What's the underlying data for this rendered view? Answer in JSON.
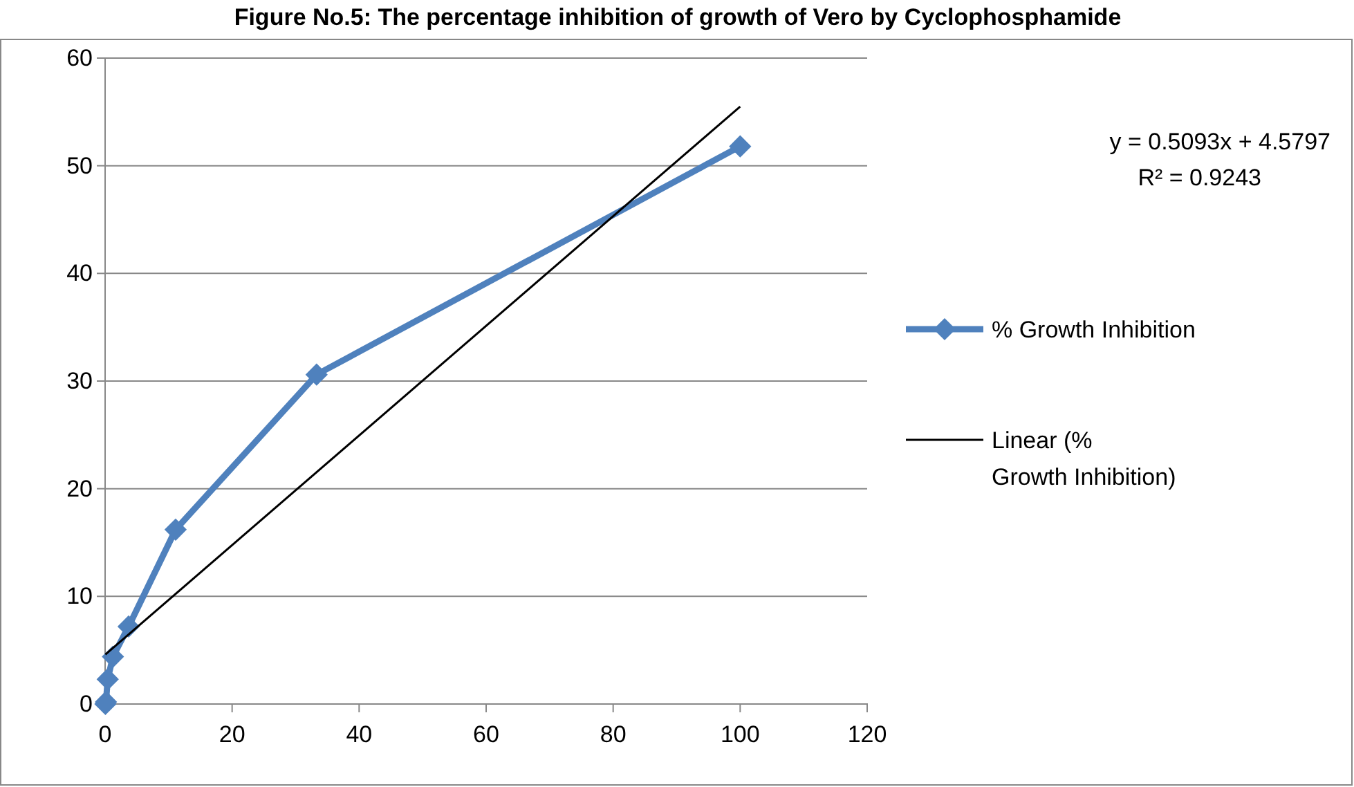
{
  "chart_data": {
    "type": "line",
    "title": "Figure No.5: The percentage inhibition of growth of Vero by Cyclophosphamide",
    "xlim": [
      0,
      120
    ],
    "xticks": [
      0,
      20,
      40,
      60,
      80,
      100,
      120
    ],
    "ylim": [
      0,
      60
    ],
    "yticks": [
      0,
      10,
      20,
      30,
      40,
      50,
      60
    ],
    "grid": "y",
    "legend": "right",
    "annotations": [
      "y = 0.5093x + 4.5797",
      "R² = 0.9243"
    ],
    "series": [
      {
        "name": "% Growth Inhibition",
        "color": "#4f81bd",
        "marker": "diamond",
        "x": [
          0.046,
          0.137,
          0.41,
          1.23,
          3.7,
          11.1,
          33.3,
          100
        ],
        "values": [
          0,
          0.2,
          2.3,
          4.4,
          7.2,
          16.2,
          30.6,
          51.8
        ]
      },
      {
        "name": "Linear (% Growth Inhibition)",
        "color": "#000000",
        "marker": "none",
        "x": [
          0.046,
          100
        ],
        "values": [
          4.6,
          55.5
        ]
      }
    ]
  }
}
